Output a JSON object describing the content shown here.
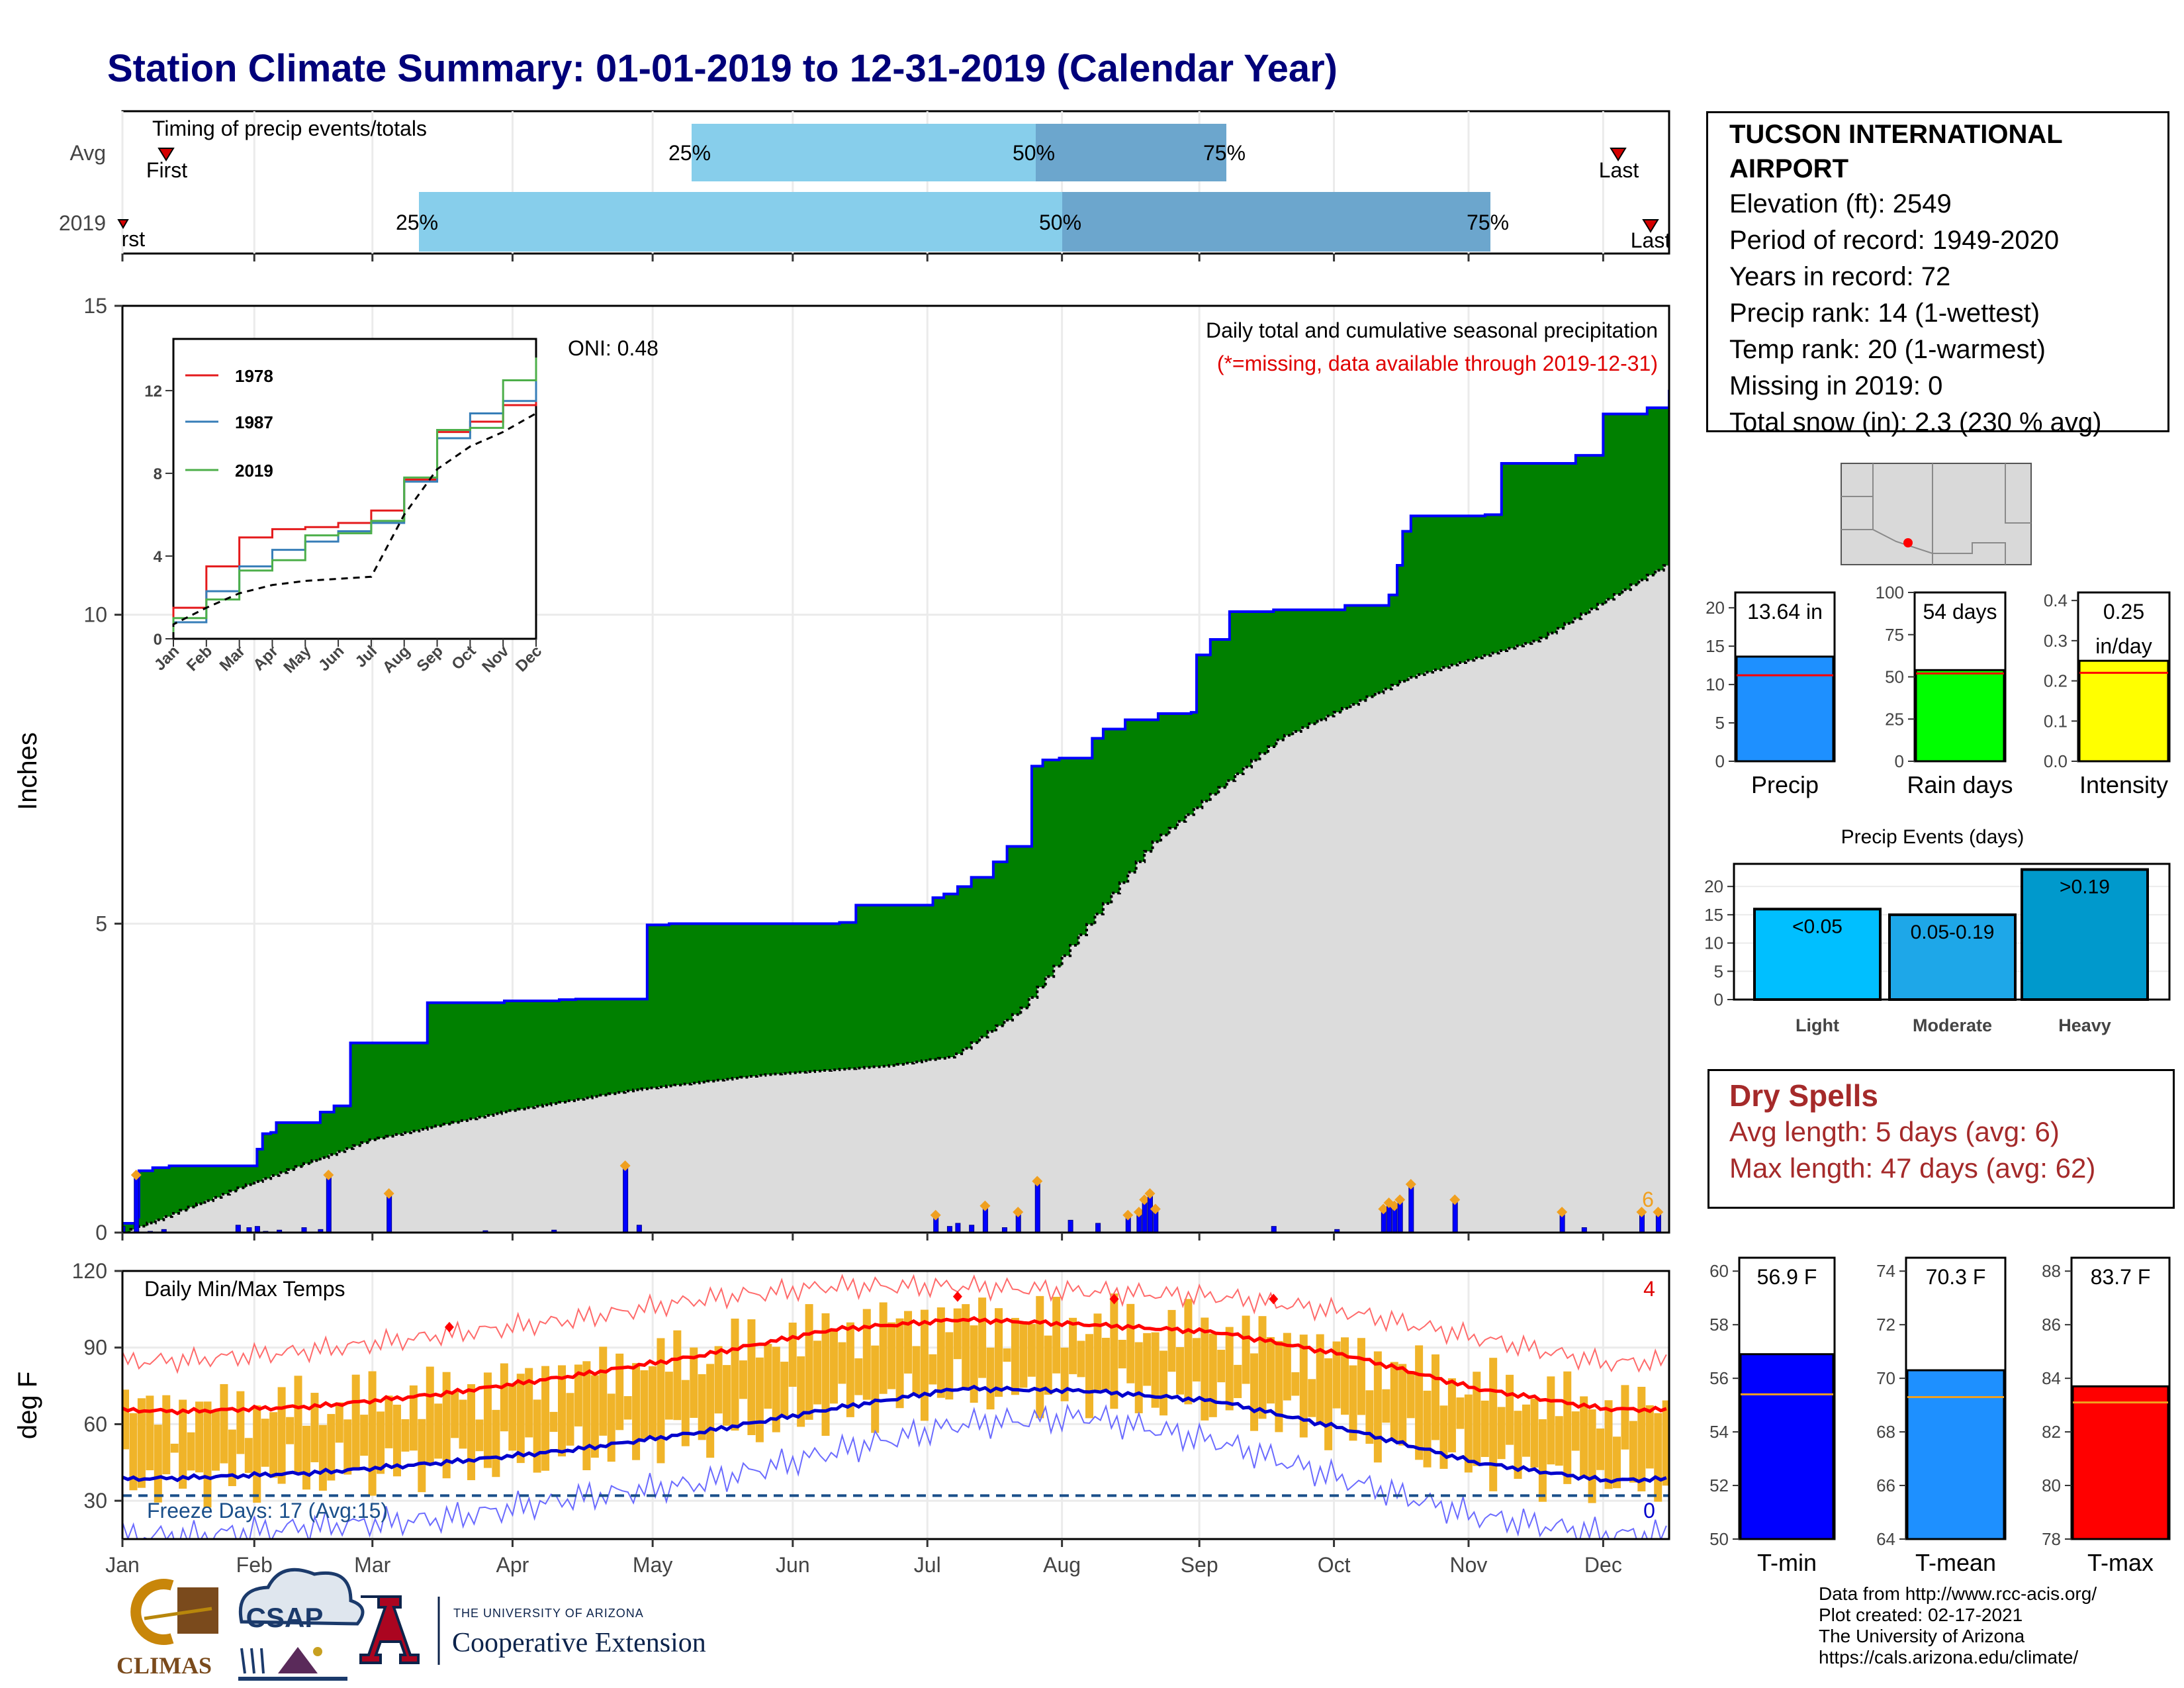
{
  "title": "Station Climate Summary: 01-01-2019 to 12-31-2019 (Calendar Year)",
  "colors": {
    "cumulative_2019": "#008000",
    "cumulative_avg": "#dcdcdc",
    "daily_bars": "#0000ff",
    "temp_bars": "#f0b429",
    "tmax_avg_line": "#ff0000",
    "tmin_avg_line": "#0000cc",
    "timing_light": "#87ceeb",
    "timing_dark": "#6ca6cd"
  },
  "timing_panel": {
    "label": "Timing of precip events/totals",
    "rows": [
      "Avg",
      "2019"
    ],
    "avg": {
      "first_label": "First",
      "last_label": "Last",
      "q25": "25%",
      "q50": "50%",
      "q75": "75%"
    },
    "y2019": {
      "first_label": "First",
      "last_label": "Last",
      "q25": "25%",
      "q50": "50%",
      "q75": "75%"
    }
  },
  "precip_panel": {
    "ylabel": "Inches",
    "yticks": [
      "0",
      "5",
      "10",
      "15"
    ],
    "oni": "ONI: 0.48",
    "subtitle": "Daily total and cumulative seasonal precipitation",
    "missing_note": "(*=missing, data available through 2019-12-31)",
    "count_label": "6"
  },
  "inset": {
    "legend": [
      "1978",
      "1987",
      "2019"
    ],
    "yticks": [
      "0",
      "4",
      "8",
      "12"
    ],
    "xticks": [
      "Jan",
      "Feb",
      "Mar",
      "Apr",
      "May",
      "Jun",
      "Jul",
      "Aug",
      "Sep",
      "Oct",
      "Nov",
      "Dec"
    ]
  },
  "temp_panel": {
    "ylabel": "deg F",
    "label": "Daily Min/Max Temps",
    "yticks": [
      "30",
      "60",
      "90",
      "120"
    ],
    "count_top": "4",
    "count_bottom": "0",
    "freeze": "Freeze Days: 17 (Avg:15)"
  },
  "month_labels": [
    "Jan",
    "Feb",
    "Mar",
    "Apr",
    "May",
    "Jun",
    "Jul",
    "Aug",
    "Sep",
    "Oct",
    "Nov",
    "Dec"
  ],
  "station": {
    "name_line1": "TUCSON INTERNATIONAL",
    "name_line2": "AIRPORT",
    "elevation": "Elevation (ft): 2549",
    "period": "Period of record: 1949-2020",
    "years": "Years in record: 72",
    "precip_rank": "Precip rank: 14 (1-wettest)",
    "temp_rank": "Temp rank: 20 (1-warmest)",
    "missing": "Missing in 2019: 0",
    "snow": "Total snow (in): 2.3 (230 % avg)"
  },
  "precip_bars": {
    "precip": {
      "label": "Precip",
      "value_text": "13.64 in",
      "yticks": [
        "0",
        "5",
        "10",
        "15",
        "20"
      ]
    },
    "rain_days": {
      "label": "Rain days",
      "value_text": "54 days",
      "yticks": [
        "0",
        "25",
        "50",
        "75",
        "100"
      ]
    },
    "intensity": {
      "label": "Intensity",
      "value_text_1": "0.25",
      "value_text_2": "in/day",
      "yticks": [
        "0.0",
        "0.1",
        "0.2",
        "0.3",
        "0.4"
      ]
    }
  },
  "events": {
    "title": "Precip Events (days)",
    "yticks": [
      "0",
      "5",
      "10",
      "15",
      "20"
    ],
    "bars": [
      {
        "category": "Light",
        "label": "<0.05"
      },
      {
        "category": "Moderate",
        "label": "0.05-0.19"
      },
      {
        "category": "Heavy",
        "label": ">0.19"
      }
    ]
  },
  "dry_spells": {
    "title": "Dry Spells",
    "avg": "Avg length: 5 days (avg: 6)",
    "max": "Max length: 47 days (avg: 62)"
  },
  "temp_bars": {
    "tmin": {
      "label": "T-min",
      "value_text": "56.9 F",
      "yticks": [
        "50",
        "52",
        "54",
        "56",
        "58",
        "60"
      ]
    },
    "tmean": {
      "label": "T-mean",
      "value_text": "70.3 F",
      "yticks": [
        "64",
        "66",
        "68",
        "70",
        "72",
        "74"
      ]
    },
    "tmax": {
      "label": "T-max",
      "value_text": "83.7 F",
      "yticks": [
        "78",
        "80",
        "82",
        "84",
        "86",
        "88"
      ]
    }
  },
  "credits": {
    "line1": "Data from http://www.rcc-acis.org/",
    "line2": "Plot created: 02-17-2021",
    "line3": "The University of Arizona",
    "line4": "https://cals.arizona.edu/climate/"
  },
  "logos": {
    "climas": "CLIMAS",
    "csap": "CSAP",
    "ua_small": "THE UNIVERSITY OF ARIZONA",
    "ua_big": "Cooperative Extension"
  },
  "chart_data": [
    {
      "type": "area",
      "title": "Daily total and cumulative seasonal precipitation",
      "ylabel": "Inches",
      "ylim": [
        0,
        15
      ],
      "x_unit": "day of year 2019",
      "series": [
        {
          "name": "2019",
          "kind": "step",
          "points": [
            [
              1,
              0.15
            ],
            [
              6,
              0.25
            ],
            [
              7,
              1.0
            ],
            [
              12,
              1.05
            ],
            [
              18,
              1.08
            ],
            [
              50,
              1.35
            ],
            [
              52,
              1.6
            ],
            [
              55,
              1.62
            ],
            [
              57,
              1.78
            ],
            [
              73,
              1.95
            ],
            [
              78,
              2.05
            ],
            [
              84,
              3.07
            ],
            [
              112,
              3.72
            ],
            [
              140,
              3.75
            ],
            [
              160,
              3.77
            ],
            [
              166,
              3.78
            ],
            [
              192,
              4.98
            ],
            [
              200,
              5.0
            ],
            [
              262,
              5.02
            ],
            [
              268,
              5.3
            ],
            [
              296,
              5.42
            ],
            [
              300,
              5.48
            ],
            [
              305,
              5.6
            ],
            [
              310,
              5.75
            ],
            [
              318,
              6.0
            ],
            [
              323,
              6.25
            ],
            [
              332,
              7.55
            ],
            [
              336,
              7.65
            ],
            [
              342,
              7.68
            ],
            [
              354,
              8.0
            ],
            [
              358,
              8.15
            ],
            [
              366,
              8.3
            ],
            [
              378,
              8.4
            ],
            [
              390,
              8.42
            ],
            [
              392,
              9.35
            ],
            [
              397,
              9.6
            ],
            [
              404,
              10.05
            ],
            [
              420,
              10.08
            ],
            [
              446,
              10.15
            ],
            [
              462,
              10.32
            ],
            [
              465,
              10.8
            ],
            [
              467,
              11.35
            ],
            [
              470,
              11.6
            ],
            [
              497,
              11.62
            ],
            [
              503,
              12.45
            ],
            [
              530,
              12.58
            ],
            [
              540,
              13.25
            ],
            [
              556,
              13.35
            ],
            [
              564,
              13.64
            ]
          ]
        },
        {
          "name": "Average",
          "kind": "cumulative",
          "points": [
            [
              1,
              0.0
            ],
            [
              31,
              0.8
            ],
            [
              59,
              1.5
            ],
            [
              90,
              1.95
            ],
            [
              120,
              2.3
            ],
            [
              151,
              2.55
            ],
            [
              181,
              2.7
            ],
            [
              196,
              2.85
            ],
            [
              212,
              3.6
            ],
            [
              243,
              6.3
            ],
            [
              273,
              8.0
            ],
            [
              304,
              9.0
            ],
            [
              334,
              9.6
            ],
            [
              365,
              10.85
            ]
          ]
        }
      ],
      "daily_precip": [
        [
          1,
          0.1
        ],
        [
          6,
          0.9
        ],
        [
          11,
          0.02
        ],
        [
          16,
          0.05
        ],
        [
          43,
          0.12
        ],
        [
          47,
          0.08
        ],
        [
          50,
          0.1
        ],
        [
          53,
          0.02
        ],
        [
          58,
          0.04
        ],
        [
          67,
          0.08
        ],
        [
          73,
          0.05
        ],
        [
          76,
          0.9
        ],
        [
          98,
          0.6
        ],
        [
          133,
          0.03
        ],
        [
          158,
          0.04
        ],
        [
          184,
          1.05
        ],
        [
          189,
          0.12
        ],
        [
          297,
          0.25
        ],
        [
          302,
          0.1
        ],
        [
          305,
          0.15
        ],
        [
          310,
          0.12
        ],
        [
          315,
          0.4
        ],
        [
          322,
          0.08
        ],
        [
          327,
          0.3
        ],
        [
          334,
          0.8
        ],
        [
          346,
          0.2
        ],
        [
          356,
          0.15
        ],
        [
          367,
          0.25
        ],
        [
          371,
          0.3
        ],
        [
          373,
          0.5
        ],
        [
          375,
          0.6
        ],
        [
          377,
          0.35
        ],
        [
          420,
          0.1
        ],
        [
          443,
          0.05
        ],
        [
          460,
          0.35
        ],
        [
          462,
          0.45
        ],
        [
          464,
          0.4
        ],
        [
          466,
          0.5
        ],
        [
          470,
          0.75
        ],
        [
          486,
          0.5
        ],
        [
          525,
          0.3
        ],
        [
          533,
          0.08
        ],
        [
          554,
          0.3
        ],
        [
          560,
          0.3
        ]
      ],
      "oni": 0.48
    },
    {
      "type": "line",
      "title": "",
      "xlabel": "",
      "ylabel": "",
      "categories": [
        "Jan",
        "Feb",
        "Mar",
        "Apr",
        "May",
        "Jun",
        "Jul",
        "Aug",
        "Sep",
        "Oct",
        "Nov",
        "Dec"
      ],
      "ylim": [
        0,
        14.5
      ],
      "series": [
        {
          "name": "1978",
          "values": [
            1.5,
            3.5,
            4.9,
            5.3,
            5.4,
            5.6,
            6.2,
            7.7,
            10.0,
            10.5,
            11.3,
            13.5
          ]
        },
        {
          "name": "1987",
          "values": [
            0.8,
            2.3,
            3.5,
            4.3,
            4.7,
            5.2,
            5.6,
            7.6,
            9.7,
            10.9,
            11.5,
            12.8
          ]
        },
        {
          "name": "2019",
          "values": [
            1.0,
            1.9,
            3.3,
            3.8,
            5.0,
            5.1,
            5.7,
            7.8,
            10.1,
            10.2,
            12.5,
            13.6
          ]
        },
        {
          "name": "",
          "values": [
            0.7,
            1.5,
            2.2,
            2.6,
            2.8,
            2.9,
            3.0,
            6.0,
            8.2,
            9.3,
            10.0,
            10.9
          ]
        }
      ]
    },
    {
      "type": "line",
      "title": "Daily Min/Max Temps",
      "ylabel": "deg F",
      "ylim": [
        15,
        120
      ],
      "categories": [
        "Jan",
        "Feb",
        "Mar",
        "Apr",
        "May",
        "Jun",
        "Jul",
        "Aug",
        "Sep",
        "Oct",
        "Nov",
        "Dec"
      ],
      "series": [
        {
          "name": "Avg max",
          "values": [
            65,
            67,
            72,
            79,
            87,
            97,
            101,
            99,
            96,
            87,
            74,
            66
          ]
        },
        {
          "name": "Avg min",
          "values": [
            39,
            41,
            45,
            50,
            57,
            66,
            74,
            73,
            69,
            58,
            45,
            38
          ]
        },
        {
          "name": "Record max",
          "values": [
            85,
            89,
            95,
            101,
            109,
            114,
            114,
            112,
            110,
            104,
            94,
            84
          ]
        },
        {
          "name": "Record min",
          "values": [
            16,
            20,
            23,
            31,
            37,
            49,
            60,
            63,
            53,
            38,
            24,
            17
          ]
        }
      ],
      "freeze_line": 32
    },
    {
      "type": "bar",
      "categories": [
        "Precip",
        "Rain days",
        "Intensity"
      ],
      "values": [
        13.64,
        54,
        0.25
      ],
      "averages": [
        11.2,
        52,
        0.22
      ],
      "ylims": [
        [
          0,
          22
        ],
        [
          0,
          100
        ],
        [
          0,
          0.42
        ]
      ]
    },
    {
      "type": "bar",
      "title": "Precip Events (days)",
      "categories": [
        "Light",
        "Moderate",
        "Heavy"
      ],
      "values": [
        16,
        15,
        23
      ],
      "ylim": [
        0,
        24
      ]
    },
    {
      "type": "bar",
      "categories": [
        "T-min",
        "T-mean",
        "T-max"
      ],
      "values": [
        56.9,
        70.3,
        83.7
      ],
      "averages": [
        55.4,
        69.3,
        83.1
      ],
      "ylims": [
        [
          50,
          60.5
        ],
        [
          64,
          74.5
        ],
        [
          78,
          88.5
        ]
      ]
    }
  ]
}
